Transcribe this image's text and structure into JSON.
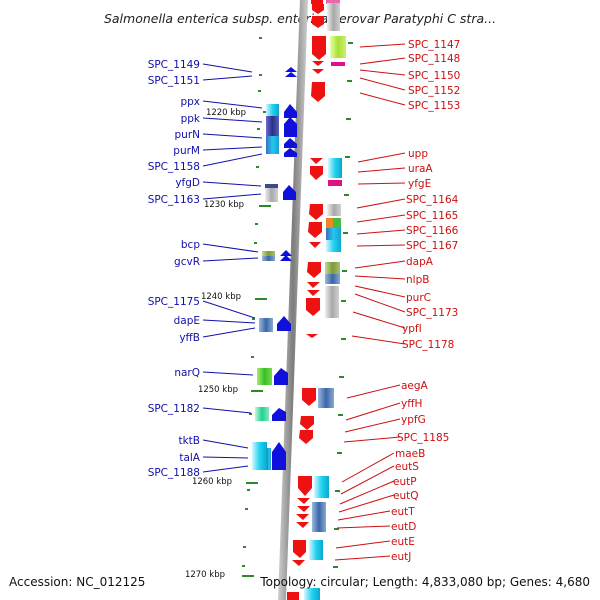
{
  "title": "Salmonella enterica subsp. enterica serovar Paratyphi C stra...",
  "accession": "Accession: NC_012125",
  "topology": "Topology: circular; Length: 4,833,080 bp; Genes: 4,680",
  "kbp_marks": [
    "1220 kbp",
    "1230 kbp",
    "1240 kbp",
    "1250 kbp",
    "1260 kbp",
    "1270 kbp"
  ],
  "left_genes": [
    "SPC_1149",
    "SPC_1151",
    "ppx",
    "ppk",
    "purN",
    "purM",
    "SPC_1158",
    "yfgD",
    "SPC_1163",
    "bcp",
    "gcvR",
    "SPC_1175",
    "dapE",
    "yffB",
    "narQ",
    "SPC_1182",
    "tktB",
    "talA",
    "SPC_1188"
  ],
  "right_genes": [
    "SPC_1147",
    "SPC_1148",
    "SPC_1150",
    "SPC_1152",
    "SPC_1153",
    "upp",
    "uraA",
    "yfgE",
    "SPC_1164",
    "SPC_1165",
    "SPC_1166",
    "SPC_1167",
    "dapA",
    "nlpB",
    "purC",
    "SPC_1173",
    "ypfI",
    "SPC_1178",
    "aegA",
    "yffH",
    "ypfG",
    "SPC_1185",
    "maeB",
    "eutS",
    "eutP",
    "eutQ",
    "eutT",
    "eutD",
    "eutE",
    "eutJ"
  ],
  "colors": {
    "left_label": "#1010aa",
    "right_label": "#cc1010",
    "backbone": "#999999",
    "tick": "#2a8a2a"
  }
}
